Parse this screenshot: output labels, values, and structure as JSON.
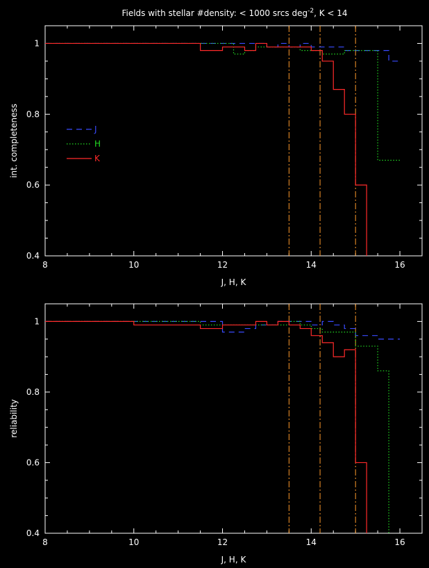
{
  "title_html": "Fields with stellar #density: < 1000 srcs deg<sup>-2</sup>, K < 14",
  "title_main": "Fields with stellar #density: < 1000 srcs deg",
  "title_sup": "-2",
  "title_tail": ", K < 14",
  "colors": {
    "J": "#3a4bff",
    "H": "#22dd22",
    "K": "#ff2a2a",
    "vline": "#ff9a2a",
    "axes": "#ffffff"
  },
  "vlines": [
    13.5,
    14.2,
    15.0
  ],
  "chart_data": [
    {
      "type": "line",
      "step": true,
      "xlabel": "J, H, K",
      "ylabel": "int. completeness",
      "xlim": [
        8,
        16.5
      ],
      "ylim": [
        0.4,
        1.05
      ],
      "xticks": [
        8,
        10,
        12,
        14,
        16
      ],
      "yticks": [
        0.4,
        0.6,
        0.8,
        1
      ],
      "ytick_labels": [
        "0.4",
        "0.6",
        "0.8",
        "1"
      ],
      "legend": {
        "placement": "left",
        "entries": [
          "J",
          "H",
          "K"
        ]
      },
      "series": [
        {
          "name": "J",
          "style": "dashed",
          "x": [
            8,
            11.5,
            12.0,
            12.5,
            12.75,
            13.0,
            13.25,
            13.5,
            13.75,
            14.0,
            14.25,
            14.5,
            14.75,
            15.0,
            15.25,
            15.5,
            15.75,
            16.0
          ],
          "y": [
            1.0,
            1.0,
            1.0,
            1.0,
            1.0,
            0.99,
            1.0,
            0.99,
            1.0,
            0.99,
            0.99,
            0.99,
            0.98,
            0.98,
            0.98,
            0.98,
            0.95,
            0.95
          ]
        },
        {
          "name": "H",
          "style": "dotted",
          "x": [
            8,
            11.5,
            12.0,
            12.25,
            12.5,
            12.75,
            13.0,
            13.25,
            13.5,
            13.75,
            14.0,
            14.25,
            14.5,
            14.75,
            15.0,
            15.25,
            15.5,
            16.0
          ],
          "y": [
            1.0,
            1.0,
            1.0,
            0.97,
            0.98,
            0.99,
            0.99,
            0.99,
            0.99,
            0.98,
            0.98,
            0.97,
            0.97,
            0.98,
            0.98,
            0.98,
            0.67,
            0.67
          ]
        },
        {
          "name": "K",
          "style": "solid",
          "x": [
            8,
            11.5,
            12.0,
            12.25,
            12.5,
            12.75,
            13.0,
            13.25,
            13.5,
            13.75,
            14.0,
            14.25,
            14.5,
            14.75,
            15.0,
            15.25
          ],
          "y": [
            1.0,
            0.98,
            0.99,
            0.99,
            0.98,
            1.0,
            0.99,
            0.99,
            0.99,
            0.99,
            0.98,
            0.95,
            0.87,
            0.8,
            0.6,
            0.38
          ]
        }
      ]
    },
    {
      "type": "line",
      "step": true,
      "xlabel": "J, H, K",
      "ylabel": "reliability",
      "xlim": [
        8,
        16.5
      ],
      "ylim": [
        0.4,
        1.05
      ],
      "xticks": [
        8,
        10,
        12,
        14,
        16
      ],
      "yticks": [
        0.4,
        0.6,
        0.8,
        1
      ],
      "ytick_labels": [
        "0.4",
        "0.6",
        "0.8",
        "1"
      ],
      "series": [
        {
          "name": "J",
          "style": "dashed",
          "x": [
            8,
            10.0,
            11.5,
            12.0,
            12.5,
            12.75,
            13.0,
            13.25,
            13.5,
            13.75,
            14.0,
            14.25,
            14.5,
            14.75,
            15.0,
            15.25,
            15.5,
            15.75,
            16.0
          ],
          "y": [
            1.0,
            1.0,
            1.0,
            0.97,
            0.98,
            0.99,
            0.99,
            1.0,
            1.0,
            1.0,
            0.99,
            1.0,
            0.99,
            0.98,
            0.96,
            0.96,
            0.95,
            0.95,
            0.95
          ]
        },
        {
          "name": "H",
          "style": "dotted",
          "x": [
            8,
            10.0,
            11.5,
            12.0,
            12.5,
            12.75,
            13.0,
            13.25,
            13.5,
            13.75,
            14.0,
            14.25,
            14.5,
            14.75,
            15.0,
            15.25,
            15.5,
            15.75,
            16.0
          ],
          "y": [
            1.0,
            1.0,
            0.99,
            0.99,
            0.99,
            0.99,
            0.99,
            0.99,
            1.0,
            0.99,
            0.98,
            0.97,
            0.97,
            0.97,
            0.93,
            0.93,
            0.86,
            0.38,
            0.38
          ]
        },
        {
          "name": "K",
          "style": "solid",
          "x": [
            8,
            10.0,
            11.5,
            12.0,
            12.5,
            12.75,
            13.0,
            13.25,
            13.5,
            13.75,
            14.0,
            14.25,
            14.5,
            14.75,
            15.0,
            15.25
          ],
          "y": [
            1.0,
            0.99,
            0.98,
            0.99,
            0.99,
            1.0,
            0.99,
            1.0,
            0.99,
            0.98,
            0.96,
            0.94,
            0.9,
            0.92,
            0.6,
            0.38
          ]
        }
      ]
    }
  ]
}
